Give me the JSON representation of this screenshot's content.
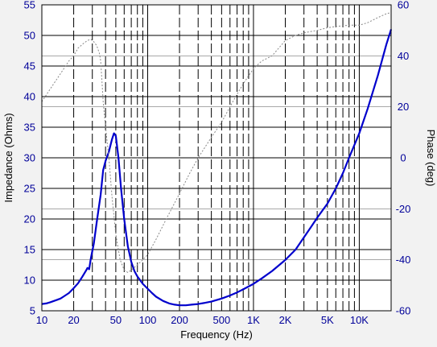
{
  "chart_data": {
    "type": "line",
    "title": "",
    "xlabel": "Frequency (Hz)",
    "ylabel_left": "Impedance (Ohms)",
    "ylabel_right": "Phase (deg)",
    "x_scale": "log",
    "xlim": [
      10,
      20000
    ],
    "ylim_left": [
      5,
      55
    ],
    "ylim_right": [
      -60,
      60
    ],
    "grid": true,
    "x_ticks": [
      {
        "value": 10,
        "label": "10"
      },
      {
        "value": 20,
        "label": "20"
      },
      {
        "value": 50,
        "label": "50"
      },
      {
        "value": 100,
        "label": "100"
      },
      {
        "value": 200,
        "label": "200"
      },
      {
        "value": 500,
        "label": "500"
      },
      {
        "value": 1000,
        "label": "1K"
      },
      {
        "value": 2000,
        "label": "2K"
      },
      {
        "value": 5000,
        "label": "5K"
      },
      {
        "value": 10000,
        "label": "10K"
      }
    ],
    "y_ticks_left": [
      5,
      10,
      15,
      20,
      25,
      30,
      35,
      40,
      45,
      50,
      55
    ],
    "y_ticks_right": [
      -60,
      -40,
      -20,
      0,
      20,
      40,
      60
    ],
    "series": [
      {
        "axis": "left",
        "color": "#0000cc",
        "style": "solid",
        "points": [
          [
            10,
            6.1
          ],
          [
            11,
            6.2
          ],
          [
            12,
            6.4
          ],
          [
            13,
            6.6
          ],
          [
            14,
            6.8
          ],
          [
            15,
            7.0
          ],
          [
            16,
            7.3
          ],
          [
            18,
            7.9
          ],
          [
            20,
            8.7
          ],
          [
            22,
            9.5
          ],
          [
            24,
            10.5
          ],
          [
            26,
            11.5
          ],
          [
            27,
            12.0
          ],
          [
            28,
            11.8
          ],
          [
            29,
            13.5
          ],
          [
            31,
            16.0
          ],
          [
            33,
            19.5
          ],
          [
            36,
            24.0
          ],
          [
            38,
            28.0
          ],
          [
            40,
            29.5
          ],
          [
            43,
            31.0
          ],
          [
            46,
            33.0
          ],
          [
            48,
            34.0
          ],
          [
            50,
            33.6
          ],
          [
            53,
            30.0
          ],
          [
            56,
            25.0
          ],
          [
            60,
            20.0
          ],
          [
            65,
            15.5
          ],
          [
            70,
            13.0
          ],
          [
            75,
            11.5
          ],
          [
            80,
            10.6
          ],
          [
            90,
            9.4
          ],
          [
            100,
            8.6
          ],
          [
            110,
            7.9
          ],
          [
            120,
            7.3
          ],
          [
            140,
            6.6
          ],
          [
            160,
            6.2
          ],
          [
            180,
            6.0
          ],
          [
            200,
            5.9
          ],
          [
            230,
            5.9
          ],
          [
            260,
            6.0
          ],
          [
            300,
            6.1
          ],
          [
            350,
            6.3
          ],
          [
            400,
            6.5
          ],
          [
            500,
            7.0
          ],
          [
            600,
            7.5
          ],
          [
            700,
            8.0
          ],
          [
            800,
            8.5
          ],
          [
            1000,
            9.4
          ],
          [
            1200,
            10.3
          ],
          [
            1500,
            11.5
          ],
          [
            2000,
            13.3
          ],
          [
            2500,
            15.0
          ],
          [
            3000,
            17.0
          ],
          [
            3500,
            18.7
          ],
          [
            4000,
            20.2
          ],
          [
            5000,
            22.5
          ],
          [
            6000,
            25.0
          ],
          [
            7000,
            27.5
          ],
          [
            8000,
            30.0
          ],
          [
            10000,
            34.0
          ],
          [
            12000,
            38.0
          ],
          [
            15000,
            43.5
          ],
          [
            18000,
            48.5
          ],
          [
            20000,
            51.0
          ]
        ]
      },
      {
        "axis": "right",
        "color": "#888888",
        "style": "dotted",
        "points": [
          [
            10,
            22
          ],
          [
            12,
            27
          ],
          [
            15,
            33
          ],
          [
            18,
            38
          ],
          [
            20,
            40
          ],
          [
            22,
            43
          ],
          [
            25,
            45
          ],
          [
            27,
            46
          ],
          [
            29,
            46.5
          ],
          [
            31,
            45.5
          ],
          [
            33,
            44
          ],
          [
            35,
            41
          ],
          [
            36,
            38
          ],
          [
            37,
            30
          ],
          [
            38,
            22
          ],
          [
            40,
            12
          ],
          [
            43,
            0
          ],
          [
            46,
            -15
          ],
          [
            50,
            -30
          ],
          [
            55,
            -40
          ],
          [
            60,
            -44
          ],
          [
            65,
            -45
          ],
          [
            70,
            -44
          ],
          [
            80,
            -42
          ],
          [
            90,
            -40
          ],
          [
            100,
            -38
          ],
          [
            120,
            -32
          ],
          [
            150,
            -24
          ],
          [
            200,
            -14
          ],
          [
            250,
            -6
          ],
          [
            300,
            0
          ],
          [
            400,
            8
          ],
          [
            500,
            14
          ],
          [
            600,
            20
          ],
          [
            700,
            25
          ],
          [
            800,
            29
          ],
          [
            1000,
            35
          ],
          [
            1200,
            38
          ],
          [
            1500,
            40
          ],
          [
            2000,
            46
          ],
          [
            2500,
            48
          ],
          [
            3000,
            49
          ],
          [
            4000,
            50
          ],
          [
            5000,
            51
          ],
          [
            6000,
            51.5
          ],
          [
            8000,
            52
          ],
          [
            10000,
            52
          ],
          [
            12000,
            53
          ],
          [
            15000,
            55
          ],
          [
            18000,
            56.5
          ],
          [
            20000,
            57
          ]
        ]
      }
    ]
  }
}
